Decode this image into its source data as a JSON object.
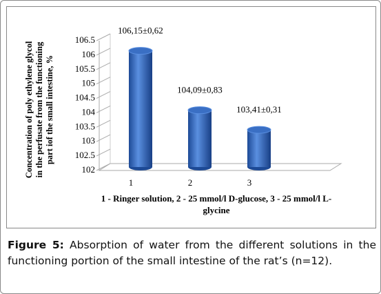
{
  "chart_data": {
    "type": "bar",
    "categories": [
      "1",
      "2",
      "3"
    ],
    "values": [
      106.15,
      104.09,
      103.41
    ],
    "value_labels": [
      "106,15±0,62",
      "104,09±0,83",
      "103,41±0,31"
    ],
    "color": "#3a6fc4",
    "ylim": [
      102,
      106.5
    ],
    "yticks": [
      102,
      102.5,
      103,
      103.5,
      104,
      104.5,
      105,
      105.5,
      106,
      106.5
    ],
    "ylabel": [
      "Concentration  of poly ethylene glycol",
      "in the perfusate from the functioning",
      "part iof the small intestine, %"
    ],
    "xlabel": [
      "1 - Ringer solution, 2 - 25 mmol/l  D-glucose, 3 - 25 mmol/l  L-",
      "glycine"
    ]
  },
  "caption": {
    "label": "Figure 5:",
    "text": "Absorption of water from the different solutions in the functioning portion of the small intestine of the rat’s (n=12)."
  }
}
